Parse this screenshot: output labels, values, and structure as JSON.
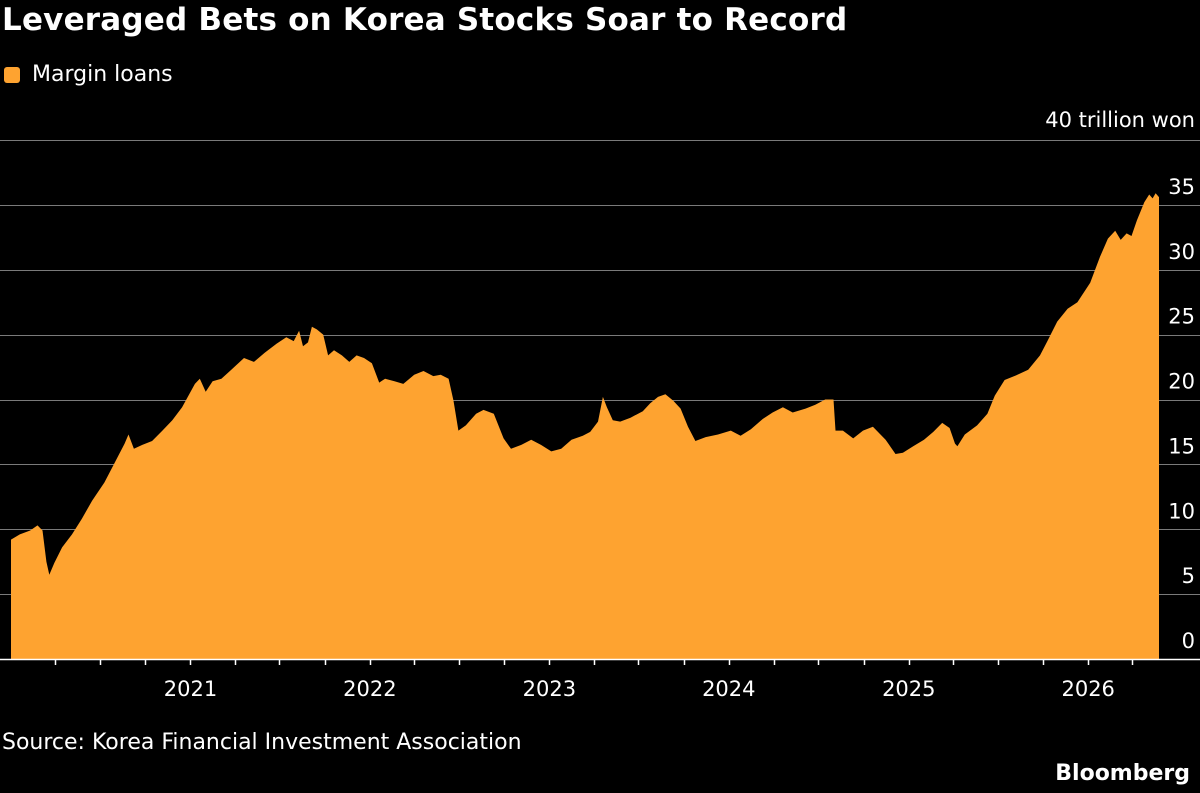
{
  "colors": {
    "background": "#000000",
    "area": "#fea330",
    "gridline": "#7a7a7a",
    "text": "#ffffff"
  },
  "source": "Source: Korea Financial Investment Association",
  "brand": "Bloomberg",
  "chart_data": {
    "type": "area",
    "title": "Leveraged Bets on Korea Stocks Soar to Record",
    "legend": [
      {
        "name": "Margin loans",
        "color": "#fea330"
      }
    ],
    "legend_position": "top-left",
    "y_unit_label": "40 trillion won",
    "ylim": [
      0,
      40
    ],
    "y_ticks": [
      0,
      5,
      10,
      15,
      20,
      25,
      30,
      35,
      40
    ],
    "y_tick_labels": [
      "0",
      "5",
      "10",
      "15",
      "20",
      "25",
      "30",
      "35",
      ""
    ],
    "y_axis_side": "right",
    "grid": true,
    "x_range": [
      "2020-01-02",
      "2026-05-25"
    ],
    "x_ticks": [
      "2021-01-01",
      "2022-01-01",
      "2023-01-01",
      "2024-01-01",
      "2025-01-01",
      "2026-01-01"
    ],
    "x_tick_labels": [
      "2021",
      "2022",
      "2023",
      "2024",
      "2025",
      "2026"
    ],
    "x_minor_ticks_per_year": 4,
    "series": [
      {
        "name": "Margin loans",
        "points": [
          [
            "2020-01-02",
            9.2
          ],
          [
            "2020-01-20",
            9.6
          ],
          [
            "2020-02-10",
            9.9
          ],
          [
            "2020-02-25",
            10.3
          ],
          [
            "2020-03-06",
            9.9
          ],
          [
            "2020-03-14",
            7.5
          ],
          [
            "2020-03-20",
            6.5
          ],
          [
            "2020-03-30",
            7.4
          ],
          [
            "2020-04-15",
            8.6
          ],
          [
            "2020-05-05",
            9.6
          ],
          [
            "2020-05-25",
            10.8
          ],
          [
            "2020-06-15",
            12.2
          ],
          [
            "2020-07-10",
            13.6
          ],
          [
            "2020-08-01",
            15.2
          ],
          [
            "2020-08-20",
            16.6
          ],
          [
            "2020-08-28",
            17.3
          ],
          [
            "2020-09-08",
            16.2
          ],
          [
            "2020-09-25",
            16.5
          ],
          [
            "2020-10-15",
            16.8
          ],
          [
            "2020-11-05",
            17.6
          ],
          [
            "2020-11-25",
            18.4
          ],
          [
            "2020-12-15",
            19.4
          ],
          [
            "2021-01-10",
            21.2
          ],
          [
            "2021-01-20",
            21.6
          ],
          [
            "2021-02-01",
            20.6
          ],
          [
            "2021-02-15",
            21.4
          ],
          [
            "2021-03-05",
            21.6
          ],
          [
            "2021-03-25",
            22.3
          ],
          [
            "2021-04-20",
            23.2
          ],
          [
            "2021-05-10",
            22.9
          ],
          [
            "2021-06-01",
            23.6
          ],
          [
            "2021-06-25",
            24.3
          ],
          [
            "2021-07-15",
            24.8
          ],
          [
            "2021-07-30",
            24.5
          ],
          [
            "2021-08-10",
            25.3
          ],
          [
            "2021-08-18",
            24.1
          ],
          [
            "2021-08-28",
            24.4
          ],
          [
            "2021-09-05",
            25.6
          ],
          [
            "2021-09-15",
            25.4
          ],
          [
            "2021-09-28",
            25.0
          ],
          [
            "2021-10-08",
            23.4
          ],
          [
            "2021-10-20",
            23.8
          ],
          [
            "2021-11-05",
            23.4
          ],
          [
            "2021-11-20",
            22.9
          ],
          [
            "2021-12-05",
            23.4
          ],
          [
            "2021-12-20",
            23.2
          ],
          [
            "2022-01-05",
            22.8
          ],
          [
            "2022-01-20",
            21.3
          ],
          [
            "2022-02-01",
            21.6
          ],
          [
            "2022-02-20",
            21.4
          ],
          [
            "2022-03-10",
            21.2
          ],
          [
            "2022-04-01",
            21.9
          ],
          [
            "2022-04-20",
            22.2
          ],
          [
            "2022-05-10",
            21.8
          ],
          [
            "2022-05-25",
            21.9
          ],
          [
            "2022-06-10",
            21.6
          ],
          [
            "2022-06-20",
            19.9
          ],
          [
            "2022-06-30",
            17.6
          ],
          [
            "2022-07-15",
            18.0
          ],
          [
            "2022-08-05",
            18.9
          ],
          [
            "2022-08-20",
            19.2
          ],
          [
            "2022-09-10",
            18.9
          ],
          [
            "2022-09-30",
            17.0
          ],
          [
            "2022-10-15",
            16.2
          ],
          [
            "2022-11-05",
            16.5
          ],
          [
            "2022-11-25",
            16.9
          ],
          [
            "2022-12-15",
            16.5
          ],
          [
            "2023-01-05",
            16.0
          ],
          [
            "2023-01-25",
            16.2
          ],
          [
            "2023-02-15",
            16.9
          ],
          [
            "2023-03-10",
            17.2
          ],
          [
            "2023-03-25",
            17.5
          ],
          [
            "2023-04-10",
            18.3
          ],
          [
            "2023-04-20",
            20.2
          ],
          [
            "2023-04-28",
            19.4
          ],
          [
            "2023-05-10",
            18.4
          ],
          [
            "2023-05-25",
            18.3
          ],
          [
            "2023-06-15",
            18.6
          ],
          [
            "2023-07-10",
            19.1
          ],
          [
            "2023-07-25",
            19.7
          ],
          [
            "2023-08-10",
            20.2
          ],
          [
            "2023-08-25",
            20.4
          ],
          [
            "2023-09-10",
            19.9
          ],
          [
            "2023-09-25",
            19.3
          ],
          [
            "2023-10-10",
            17.9
          ],
          [
            "2023-10-25",
            16.8
          ],
          [
            "2023-11-15",
            17.1
          ],
          [
            "2023-12-10",
            17.3
          ],
          [
            "2024-01-05",
            17.6
          ],
          [
            "2024-01-25",
            17.2
          ],
          [
            "2024-02-15",
            17.7
          ],
          [
            "2024-03-10",
            18.5
          ],
          [
            "2024-03-30",
            19.0
          ],
          [
            "2024-04-20",
            19.4
          ],
          [
            "2024-05-10",
            19.0
          ],
          [
            "2024-06-05",
            19.3
          ],
          [
            "2024-06-25",
            19.6
          ],
          [
            "2024-07-15",
            20.0
          ],
          [
            "2024-08-01",
            20.0
          ],
          [
            "2024-08-05",
            17.6
          ],
          [
            "2024-08-20",
            17.6
          ],
          [
            "2024-09-10",
            17.0
          ],
          [
            "2024-09-30",
            17.6
          ],
          [
            "2024-10-20",
            17.9
          ],
          [
            "2024-11-15",
            16.9
          ],
          [
            "2024-12-05",
            15.8
          ],
          [
            "2024-12-20",
            15.9
          ],
          [
            "2025-01-10",
            16.4
          ],
          [
            "2025-02-01",
            16.9
          ],
          [
            "2025-02-20",
            17.5
          ],
          [
            "2025-03-10",
            18.2
          ],
          [
            "2025-03-25",
            17.8
          ],
          [
            "2025-04-05",
            16.6
          ],
          [
            "2025-04-10",
            16.4
          ],
          [
            "2025-04-25",
            17.3
          ],
          [
            "2025-05-20",
            18.0
          ],
          [
            "2025-06-10",
            18.9
          ],
          [
            "2025-06-25",
            20.3
          ],
          [
            "2025-07-15",
            21.5
          ],
          [
            "2025-08-10",
            21.9
          ],
          [
            "2025-09-01",
            22.3
          ],
          [
            "2025-09-25",
            23.4
          ],
          [
            "2025-10-10",
            24.5
          ],
          [
            "2025-10-30",
            26.0
          ],
          [
            "2025-11-20",
            27.0
          ],
          [
            "2025-12-10",
            27.5
          ],
          [
            "2026-01-05",
            29.0
          ],
          [
            "2026-01-25",
            31.0
          ],
          [
            "2026-02-10",
            32.4
          ],
          [
            "2026-02-25",
            33.0
          ],
          [
            "2026-03-08",
            32.3
          ],
          [
            "2026-03-20",
            32.8
          ],
          [
            "2026-03-30",
            32.6
          ],
          [
            "2026-04-10",
            33.8
          ],
          [
            "2026-04-25",
            35.2
          ],
          [
            "2026-05-05",
            35.8
          ],
          [
            "2026-05-12",
            35.5
          ],
          [
            "2026-05-18",
            35.9
          ],
          [
            "2026-05-25",
            35.6
          ]
        ]
      }
    ]
  }
}
